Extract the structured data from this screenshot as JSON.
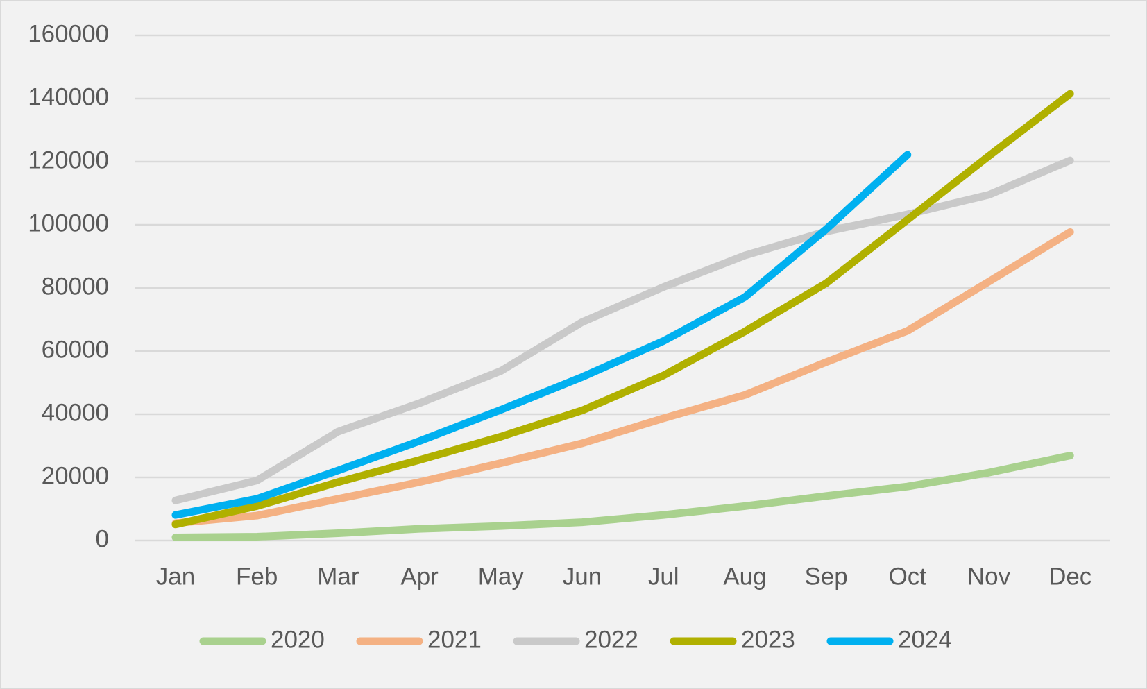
{
  "chart_data": {
    "type": "line",
    "categories": [
      "Jan",
      "Feb",
      "Mar",
      "Apr",
      "May",
      "Jun",
      "Jul",
      "Aug",
      "Sep",
      "Oct",
      "Nov",
      "Dec"
    ],
    "series": [
      {
        "name": "2020",
        "color": "#a9d18e",
        "values": [
          1000,
          1200,
          2300,
          3700,
          4600,
          5800,
          8100,
          10900,
          14100,
          17100,
          21500,
          26900
        ]
      },
      {
        "name": "2021",
        "color": "#f4b183",
        "values": [
          5500,
          7900,
          13200,
          18500,
          24500,
          30800,
          38700,
          46100,
          56500,
          66400,
          82000,
          97700
        ]
      },
      {
        "name": "2022",
        "color": "#c9c9c9",
        "values": [
          12700,
          19000,
          34500,
          43500,
          53700,
          69200,
          80300,
          90300,
          97900,
          103300,
          109500,
          120400
        ]
      },
      {
        "name": "2023",
        "color": "#b0b000",
        "values": [
          5100,
          10900,
          18500,
          25500,
          32900,
          41200,
          52300,
          66200,
          81500,
          101600,
          121800,
          141500
        ]
      },
      {
        "name": "2024",
        "color": "#00b0f0",
        "values": [
          8100,
          13200,
          22200,
          31500,
          41400,
          51800,
          63200,
          77100,
          98600,
          122200,
          null,
          null
        ]
      }
    ],
    "ylim": [
      0,
      160000
    ],
    "yticks": [
      0,
      20000,
      40000,
      60000,
      80000,
      100000,
      120000,
      140000,
      160000
    ],
    "grid": true,
    "legend": "bottom"
  }
}
